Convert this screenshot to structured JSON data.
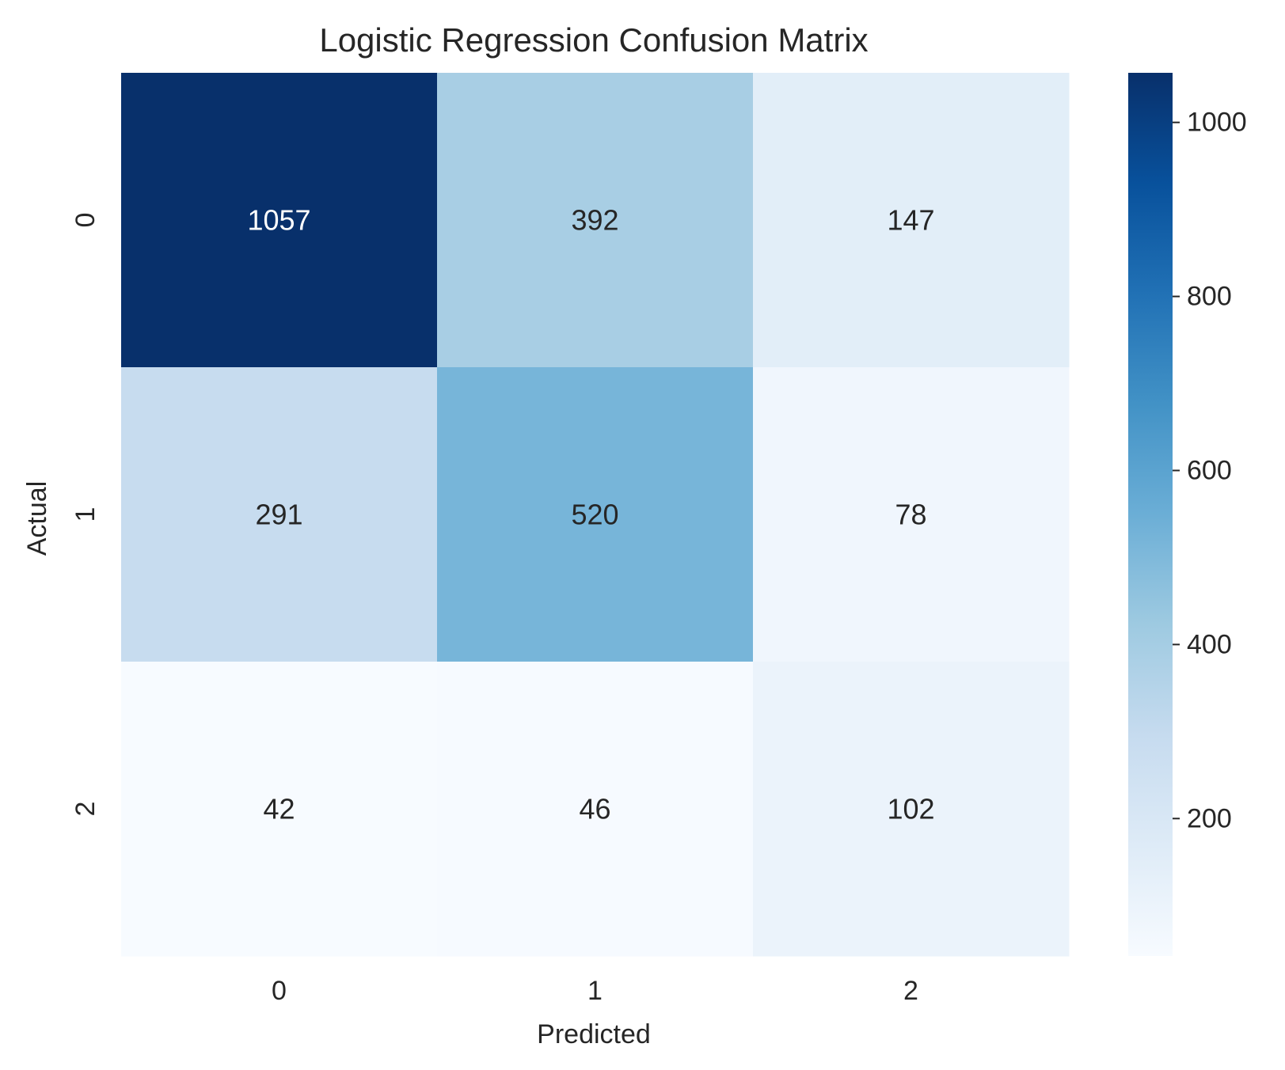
{
  "chart_data": {
    "type": "heatmap",
    "title": "Logistic Regression Confusion Matrix",
    "xlabel": "Predicted",
    "ylabel": "Actual",
    "x_categories": [
      "0",
      "1",
      "2"
    ],
    "y_categories": [
      "0",
      "1",
      "2"
    ],
    "values": [
      [
        1057,
        392,
        147
      ],
      [
        291,
        520,
        78
      ],
      [
        42,
        46,
        102
      ]
    ],
    "colormap": "Blues",
    "colorbar": {
      "min": 42,
      "max": 1057,
      "ticks": [
        200,
        400,
        600,
        800,
        1000
      ]
    },
    "grid": false
  }
}
